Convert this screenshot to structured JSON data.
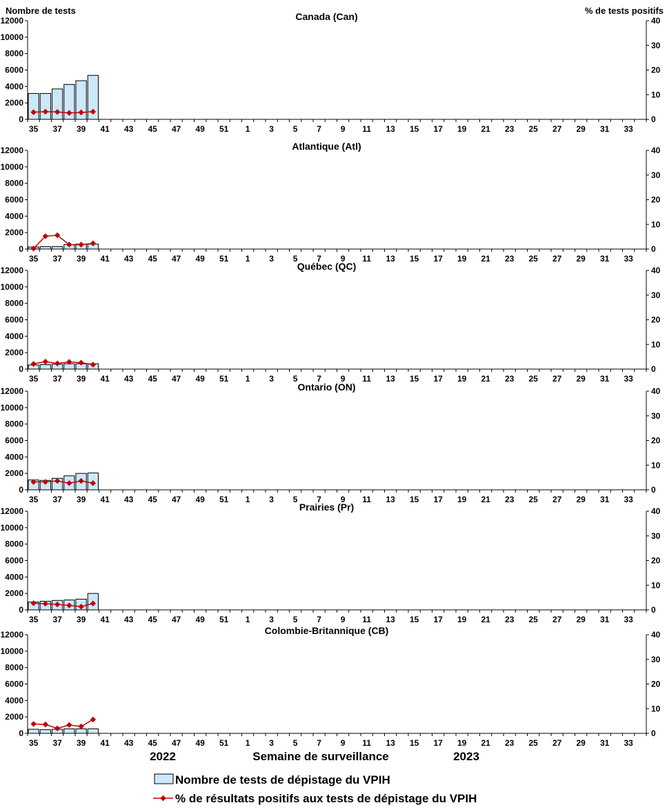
{
  "chart_data": {
    "type": "bar",
    "left_axis_title": "Nombre de tests",
    "right_axis_title": "% de tests positifs",
    "y_left_range": [
      0,
      12000
    ],
    "y_left_ticks": [
      "0",
      "2000",
      "4000",
      "6000",
      "8000",
      "10000",
      "12000"
    ],
    "y_right_range": [
      0,
      40
    ],
    "y_right_ticks": [
      "0",
      "10",
      "20",
      "30",
      "40"
    ],
    "weeks": [
      "35",
      "36",
      "37",
      "38",
      "39",
      "40",
      "41",
      "42",
      "43",
      "44",
      "45",
      "46",
      "47",
      "48",
      "49",
      "50",
      "51",
      "52",
      "1",
      "2",
      "3",
      "4",
      "5",
      "6",
      "7",
      "8",
      "9",
      "10",
      "11",
      "12",
      "13",
      "14",
      "15",
      "16",
      "17",
      "18",
      "19",
      "20",
      "21",
      "22",
      "23",
      "24",
      "25",
      "26",
      "27",
      "28",
      "29",
      "30",
      "31",
      "32",
      "33",
      "34"
    ],
    "week_tick_labels": [
      "35",
      "37",
      "39",
      "41",
      "43",
      "45",
      "47",
      "49",
      "51",
      "1",
      "3",
      "5",
      "7",
      "9",
      "11",
      "13",
      "15",
      "17",
      "19",
      "21",
      "23",
      "25",
      "27",
      "29",
      "31",
      "33"
    ],
    "year_labels": [
      "2022",
      "2023"
    ],
    "x_axis_label": "Semaine de surveillance",
    "legend": {
      "bar": "Nombre de tests de dépistage du VPIH",
      "line": "% de résultats positifs aux tests de dépistage du VPIH"
    },
    "colors": {
      "bar_fill": "#cce8fa",
      "bar_stroke": "#000000",
      "line": "#c00000"
    },
    "panels": [
      {
        "title": "Canada (Can)",
        "tests": [
          3150,
          3150,
          3700,
          4250,
          4700,
          5350
        ],
        "percent_positive": [
          2.9,
          3.1,
          3.0,
          2.6,
          2.8,
          3.1
        ]
      },
      {
        "title": "Atlantique (Atl)",
        "tests": [
          250,
          300,
          300,
          550,
          600,
          600
        ],
        "percent_positive": [
          0.2,
          5.2,
          5.6,
          1.8,
          1.8,
          2.3
        ]
      },
      {
        "title": "Québec (QC)",
        "tests": [
          500,
          550,
          600,
          650,
          650,
          650
        ],
        "percent_positive": [
          2.1,
          3.0,
          2.3,
          2.9,
          2.6,
          1.8
        ]
      },
      {
        "title": "Ontario (ON)",
        "tests": [
          1200,
          1150,
          1400,
          1700,
          2000,
          2050
        ],
        "percent_positive": [
          3.2,
          3.2,
          3.6,
          2.7,
          3.6,
          2.7
        ]
      },
      {
        "title": "Prairies (Pr)",
        "tests": [
          950,
          1050,
          1150,
          1200,
          1300,
          2000
        ],
        "percent_positive": [
          2.7,
          2.5,
          2.2,
          1.8,
          1.3,
          2.6
        ]
      },
      {
        "title": "Colombie-Britannique (CB)",
        "tests": [
          500,
          450,
          500,
          550,
          550,
          550
        ],
        "percent_positive": [
          3.8,
          3.6,
          2.0,
          3.4,
          2.8,
          5.6
        ]
      }
    ]
  }
}
